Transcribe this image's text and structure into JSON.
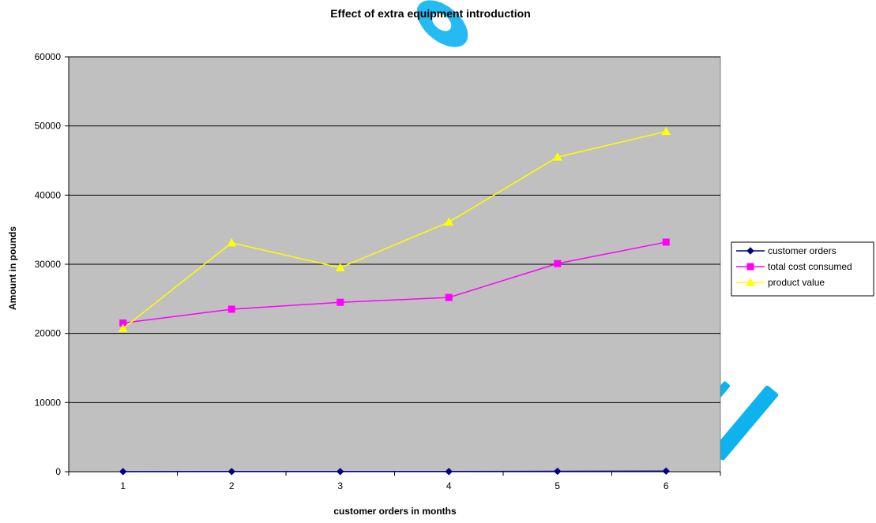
{
  "chart_data": {
    "type": "line",
    "title": "Effect of extra equipment introduction",
    "xlabel": "customer orders in months",
    "ylabel": "Amount in pounds",
    "categories": [
      "1",
      "2",
      "3",
      "4",
      "5",
      "6"
    ],
    "ylim": [
      0,
      60000
    ],
    "yticks": [
      0,
      10000,
      20000,
      30000,
      40000,
      50000,
      60000
    ],
    "grid": true,
    "legend_position": "right",
    "plot_background": "#c0c0c0",
    "series": [
      {
        "name": "customer orders",
        "values": [
          20,
          25,
          22,
          30,
          60,
          90
        ],
        "color": "#000080",
        "marker": "diamond"
      },
      {
        "name": "total cost consumed",
        "values": [
          21500,
          23500,
          24500,
          25200,
          30100,
          33200
        ],
        "color": "#ff00ff",
        "marker": "square"
      },
      {
        "name": "product value",
        "values": [
          20700,
          33100,
          29500,
          36100,
          45500,
          49200
        ],
        "color": "#ffff00",
        "marker": "triangle"
      }
    ]
  },
  "watermark_color": "#00aeef"
}
